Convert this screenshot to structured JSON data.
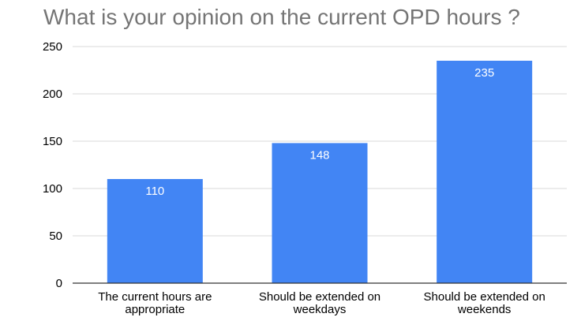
{
  "chart_data": {
    "type": "bar",
    "title": "What is your opinion on the current OPD hours ?",
    "categories": [
      [
        "The current hours are",
        "appropriate"
      ],
      [
        "Should be extended on",
        "weekdays"
      ],
      [
        "Should be extended on",
        "weekends"
      ]
    ],
    "values": [
      110,
      148,
      235
    ],
    "data_labels": [
      "110",
      "148",
      "235"
    ],
    "ylim": [
      0,
      250
    ],
    "yticks": [
      0,
      50,
      100,
      150,
      200,
      250
    ],
    "grid": true,
    "legend": "none",
    "bar_color": "#4285f4",
    "grid_color": "#d9d9d9",
    "axis_color": "#333333"
  }
}
